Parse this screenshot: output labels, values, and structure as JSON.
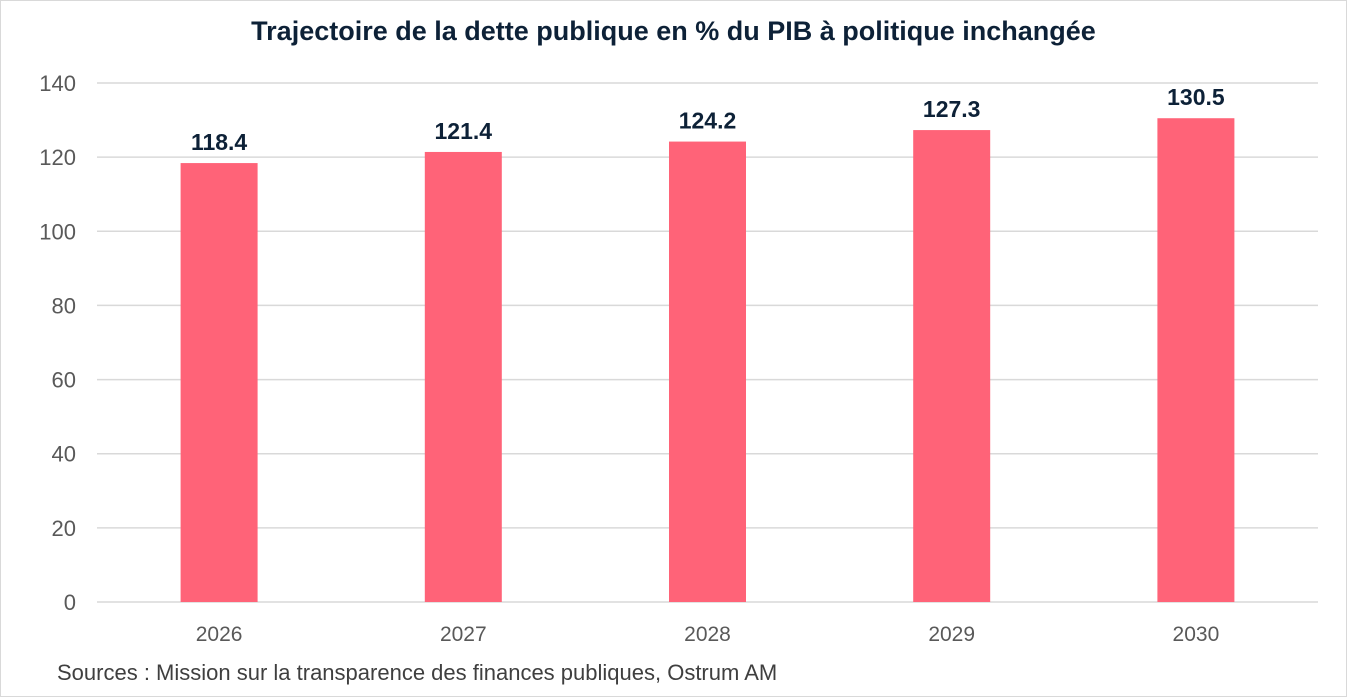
{
  "chart_data": {
    "type": "bar",
    "title": "Trajectoire de la dette publique en % du PIB à politique inchangée",
    "categories": [
      "2026",
      "2027",
      "2028",
      "2029",
      "2030"
    ],
    "values": [
      118.4,
      121.4,
      124.2,
      127.3,
      130.5
    ],
    "data_labels": [
      "118.4",
      "121.4",
      "124.2",
      "127.3",
      "130.5"
    ],
    "xlabel": "",
    "ylabel": "",
    "ylim": [
      0,
      140
    ],
    "yticks": [
      0,
      20,
      40,
      60,
      80,
      100,
      120,
      140
    ],
    "grid": true,
    "legend": "none",
    "colors": {
      "bar": "#ff6378",
      "title": "#0d2137",
      "data_label": "#0d2137",
      "tick_label": "#595959",
      "grid": "#d9d9d9"
    }
  },
  "source": "Sources : Mission sur la transparence des finances publiques, Ostrum AM"
}
